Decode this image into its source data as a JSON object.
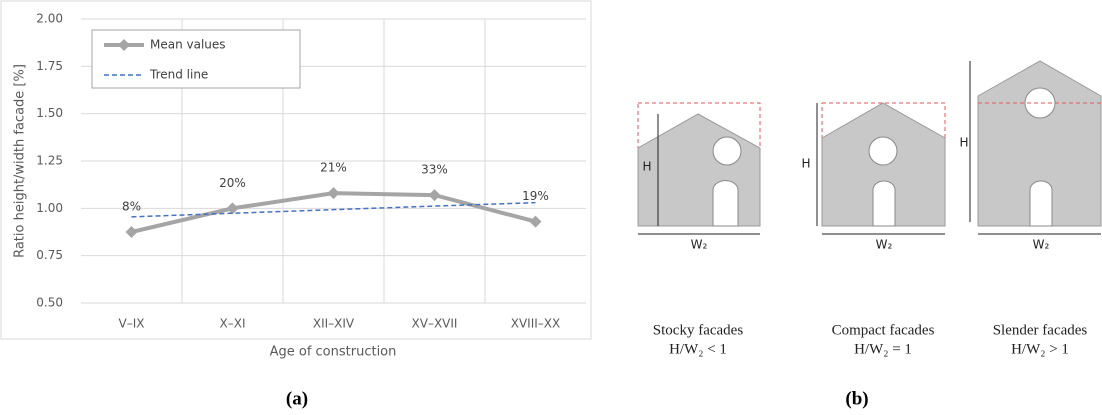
{
  "chart_data": {
    "type": "line",
    "panel_label": "(a)",
    "xlabel": "Age of construction",
    "ylabel": "Ratio height/width facade [%]",
    "categories": [
      "V–IX",
      "X–XI",
      "XII–XIV",
      "XV–XVII",
      "XVIII–XX"
    ],
    "series": [
      {
        "name": "Mean values",
        "color": "#a5a5a5",
        "style": "solid",
        "values": [
          0.875,
          1.0,
          1.08,
          1.07,
          0.93
        ]
      },
      {
        "name": "Trend line",
        "color": "#4472c4",
        "style": "dashed",
        "values": [
          0.955,
          0.974,
          0.993,
          1.012,
          1.03
        ]
      }
    ],
    "annotations": [
      "8%",
      "20%",
      "21%",
      "33%",
      "19%"
    ],
    "ylim": [
      0.5,
      2.0
    ],
    "yticks": [
      {
        "value": 0.5,
        "label": "0.50"
      },
      {
        "value": 0.75,
        "label": "0.75"
      },
      {
        "value": 1,
        "label": "1.00"
      },
      {
        "value": 1.25,
        "label": "1.25"
      },
      {
        "value": 1.5,
        "label": "1.50"
      },
      {
        "value": 1.75,
        "label": "1.75"
      },
      {
        "value": 2,
        "label": "2.00"
      }
    ],
    "grid": true,
    "legend": "upper left"
  },
  "diagram": {
    "label": "(b)",
    "panels": [
      {
        "caption": "Stocky facades",
        "ratio": "H/W₂ < 1",
        "height_label": "H",
        "width_label": "W₂"
      },
      {
        "caption": "Compact facades",
        "ratio": "H/W₂ = 1",
        "height_label": "H",
        "width_label": "W₂"
      },
      {
        "caption": "Slender facades",
        "ratio": "H/W₂ > 1",
        "height_label": "H",
        "width_label": "W₂"
      }
    ]
  }
}
